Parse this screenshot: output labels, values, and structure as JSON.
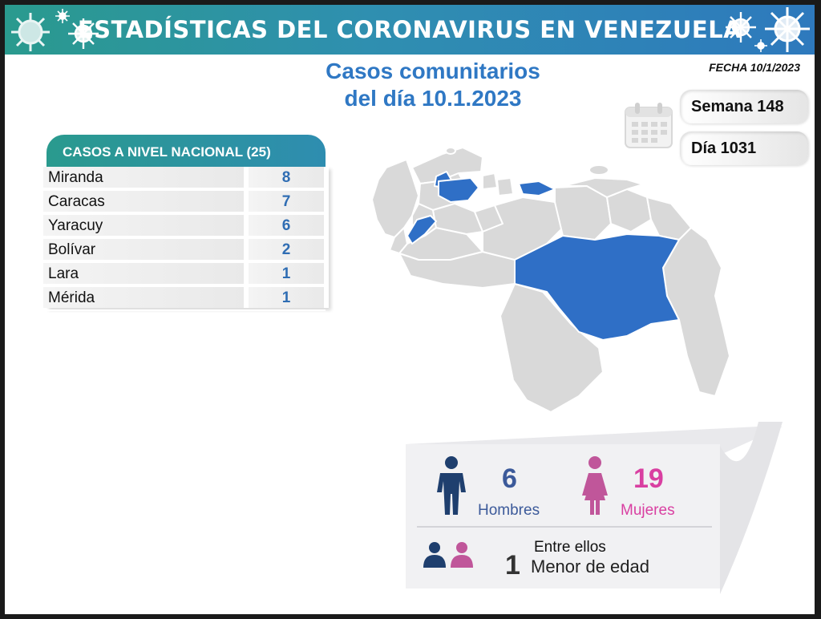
{
  "banner": {
    "title": "ESTADÍSTICAS DEL CORONAVIRUS EN VENEZUELA"
  },
  "fecha": "FECHA 10/1/2023",
  "subtitle": {
    "line1": "Casos comunitarios",
    "line2": "del día 10.1.2023"
  },
  "semana": "Semana 148",
  "dia": "Día 1031",
  "table": {
    "header": "CASOS A NIVEL NACIONAL  (25)",
    "rows": [
      {
        "name": "Miranda",
        "value": "8"
      },
      {
        "name": "Caracas",
        "value": "7"
      },
      {
        "name": "Yaracuy",
        "value": "6"
      },
      {
        "name": "Bolívar",
        "value": "2"
      },
      {
        "name": "Lara",
        "value": "1"
      },
      {
        "name": "Mérida",
        "value": "1"
      }
    ]
  },
  "stats": {
    "hombres_num": "6",
    "hombres_label": "Hombres",
    "mujeres_num": "19",
    "mujeres_label": "Mujeres",
    "entre": "Entre ellos",
    "menor_num": "1",
    "menor_label": "Menor de edad"
  },
  "colors": {
    "banner_start": "#2a9a8e",
    "banner_end": "#2e79bd",
    "highlight_state": "#2f6fc6",
    "map_gray": "#d9d9d9",
    "male": "#1f3f6e",
    "female": "#c0569a"
  },
  "icons": [
    "virus-icon",
    "calendar-icon",
    "male-icon",
    "female-icon",
    "children-icon"
  ]
}
